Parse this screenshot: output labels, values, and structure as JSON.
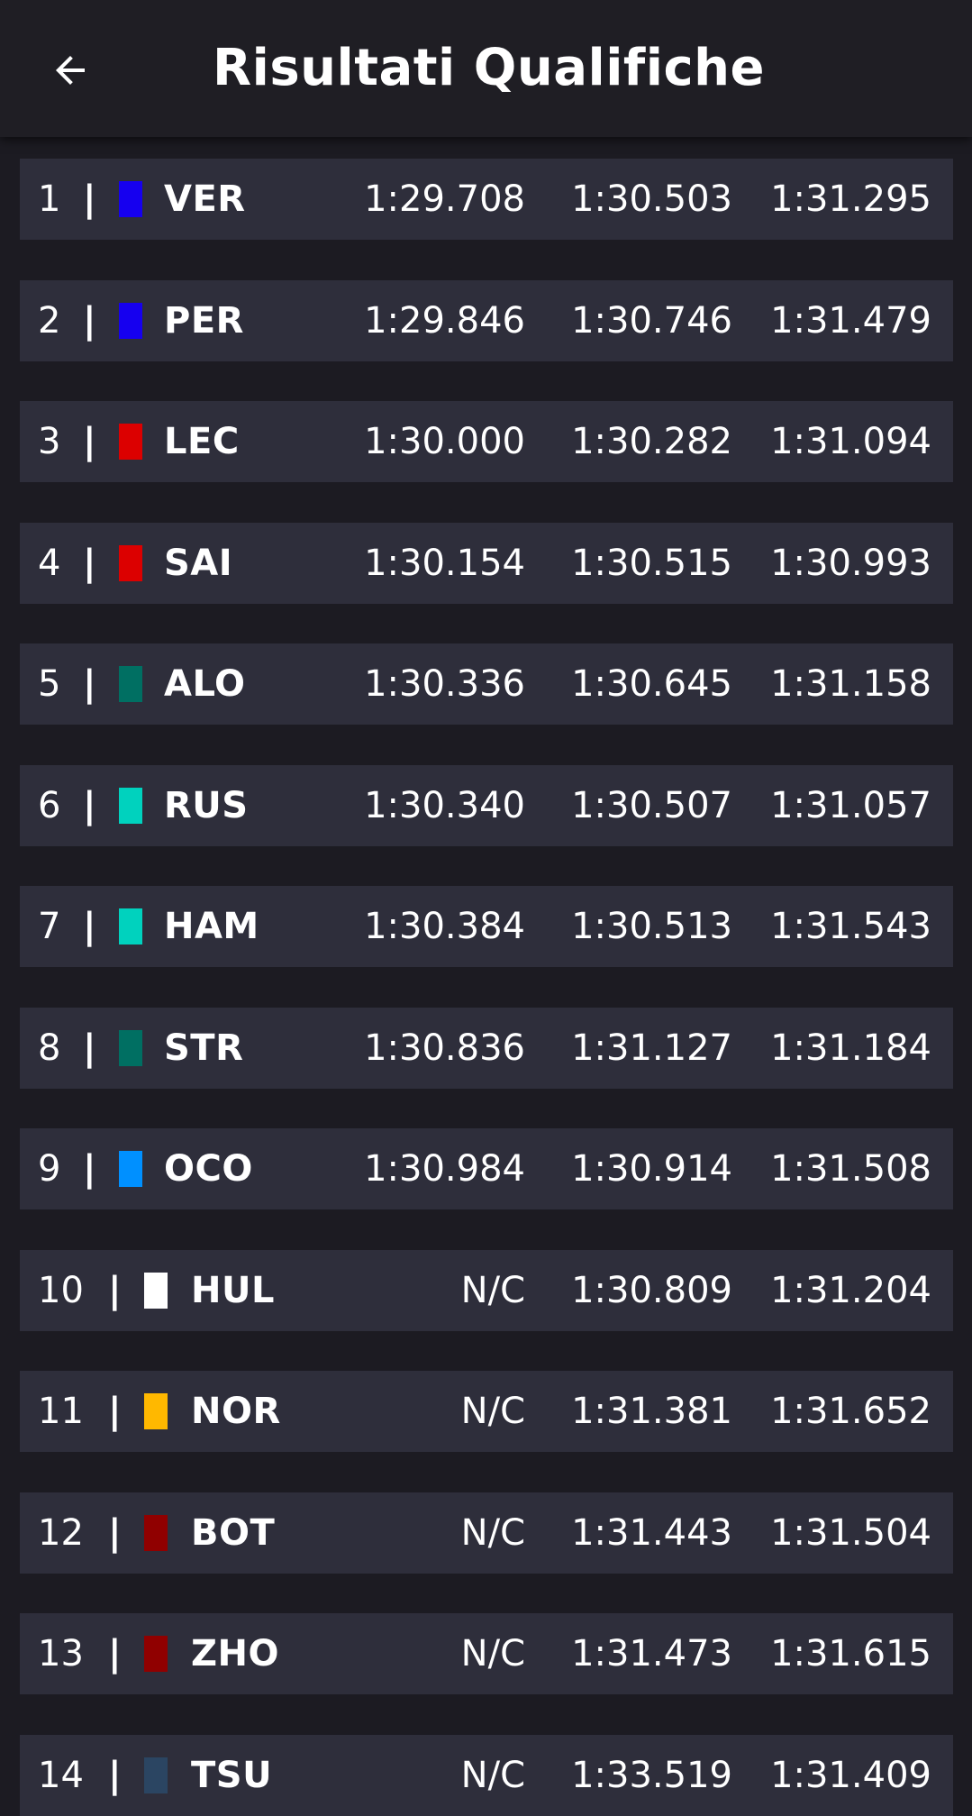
{
  "header": {
    "title": "Risultati Qualifiche",
    "back_icon": "arrow-left-icon"
  },
  "results": [
    {
      "position": "1",
      "driver": "VER",
      "team_color": "#1600ef",
      "q1": "1:29.708",
      "q2": "1:30.503",
      "q3": "1:31.295"
    },
    {
      "position": "2",
      "driver": "PER",
      "team_color": "#1600ef",
      "q1": "1:29.846",
      "q2": "1:30.746",
      "q3": "1:31.479"
    },
    {
      "position": "3",
      "driver": "LEC",
      "team_color": "#dc0000",
      "q1": "1:30.000",
      "q2": "1:30.282",
      "q3": "1:31.094"
    },
    {
      "position": "4",
      "driver": "SAI",
      "team_color": "#dc0000",
      "q1": "1:30.154",
      "q2": "1:30.515",
      "q3": "1:30.993"
    },
    {
      "position": "5",
      "driver": "ALO",
      "team_color": "#006f62",
      "q1": "1:30.336",
      "q2": "1:30.645",
      "q3": "1:31.158"
    },
    {
      "position": "6",
      "driver": "RUS",
      "team_color": "#00d2be",
      "q1": "1:30.340",
      "q2": "1:30.507",
      "q3": "1:31.057"
    },
    {
      "position": "7",
      "driver": "HAM",
      "team_color": "#00d2be",
      "q1": "1:30.384",
      "q2": "1:30.513",
      "q3": "1:31.543"
    },
    {
      "position": "8",
      "driver": "STR",
      "team_color": "#006f62",
      "q1": "1:30.836",
      "q2": "1:31.127",
      "q3": "1:31.184"
    },
    {
      "position": "9",
      "driver": "OCO",
      "team_color": "#0090ff",
      "q1": "1:30.984",
      "q2": "1:30.914",
      "q3": "1:31.508"
    },
    {
      "position": "10",
      "driver": "HUL",
      "team_color": "#ffffff",
      "q1": "N/C",
      "q2": "1:30.809",
      "q3": "1:31.204"
    },
    {
      "position": "11",
      "driver": "NOR",
      "team_color": "#ffb800",
      "q1": "N/C",
      "q2": "1:31.381",
      "q3": "1:31.652"
    },
    {
      "position": "12",
      "driver": "BOT",
      "team_color": "#900000",
      "q1": "N/C",
      "q2": "1:31.443",
      "q3": "1:31.504"
    },
    {
      "position": "13",
      "driver": "ZHO",
      "team_color": "#900000",
      "q1": "N/C",
      "q2": "1:31.473",
      "q3": "1:31.615"
    },
    {
      "position": "14",
      "driver": "TSU",
      "team_color": "#2b4562",
      "q1": "N/C",
      "q2": "1:33.519",
      "q3": "1:31.409"
    }
  ]
}
